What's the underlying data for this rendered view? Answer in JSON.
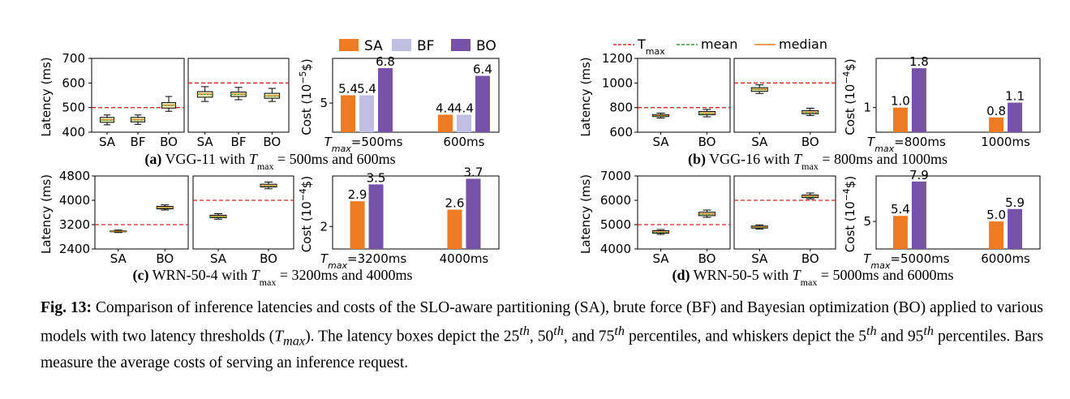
{
  "legends": {
    "method": [
      {
        "label": "SA",
        "color": "#EE7B22"
      },
      {
        "label": "BF",
        "color": "#C0BEE2"
      },
      {
        "label": "BO",
        "color": "#7851A9"
      }
    ],
    "lines": [
      {
        "label": "T",
        "sub": "max",
        "color": "#D62728",
        "style": "dashed"
      },
      {
        "label": "mean",
        "color": "#2CA02C",
        "style": "dashed"
      },
      {
        "label": "median",
        "color": "#EE7B22",
        "style": "solid"
      }
    ]
  },
  "panels": [
    {
      "id": "a",
      "caption": "(a) VGG-11 with T",
      "caption_tail": " = 500ms and 600ms"
    },
    {
      "id": "b",
      "caption": "(b) VGG-16 with T",
      "caption_tail": " = 800ms and 1000ms"
    },
    {
      "id": "c",
      "caption": "(c) WRN-50-4 with T",
      "caption_tail": " = 3200ms and 4000ms"
    },
    {
      "id": "d",
      "caption": "(d) WRN-50-5 with T",
      "caption_tail": " = 5000ms and 6000ms"
    }
  ],
  "chart_data": [
    {
      "panel": "a",
      "type": "box",
      "ylabel": "Latency (ms)",
      "ylim": [
        400,
        700
      ],
      "yticks": [
        400,
        500,
        600,
        700
      ],
      "subplots": [
        {
          "threshold": 500,
          "boxes": [
            {
              "label": "SA",
              "p5": 430,
              "p25": 440,
              "median": 450,
              "p75": 460,
              "p95": 470
            },
            {
              "label": "BF",
              "p5": 432,
              "p25": 442,
              "median": 451,
              "p75": 460,
              "p95": 470
            },
            {
              "label": "BO",
              "p5": 485,
              "p25": 498,
              "median": 510,
              "p75": 520,
              "p95": 545
            }
          ]
        },
        {
          "threshold": 600,
          "boxes": [
            {
              "label": "SA",
              "p5": 525,
              "p25": 542,
              "median": 555,
              "p75": 565,
              "p95": 585
            },
            {
              "label": "BF",
              "p5": 532,
              "p25": 545,
              "median": 555,
              "p75": 563,
              "p95": 582
            },
            {
              "label": "BO",
              "p5": 525,
              "p25": 538,
              "median": 548,
              "p75": 558,
              "p95": 578
            }
          ]
        }
      ]
    },
    {
      "panel": "a",
      "type": "bar",
      "ylabel": "Cost (10",
      "ylabel_exp": "−5",
      "ylabel_tail": "$)",
      "ylim": [
        3.5,
        7.3
      ],
      "yticks": [
        5
      ],
      "categories": [
        "T",
        "600ms"
      ],
      "category0_sub": "max",
      "category0_tail": "=500ms",
      "series": [
        {
          "name": "SA",
          "values": [
            5.4,
            4.4
          ]
        },
        {
          "name": "BF",
          "values": [
            5.4,
            4.4
          ]
        },
        {
          "name": "BO",
          "values": [
            6.8,
            6.4
          ]
        }
      ]
    },
    {
      "panel": "b",
      "type": "box",
      "ylabel": "Latency (ms)",
      "ylim": [
        600,
        1200
      ],
      "yticks": [
        600,
        800,
        1000,
        1200
      ],
      "subplots": [
        {
          "threshold": 800,
          "boxes": [
            {
              "label": "SA",
              "p5": 715,
              "p25": 727,
              "median": 735,
              "p75": 743,
              "p95": 755
            },
            {
              "label": "BO",
              "p5": 725,
              "p25": 742,
              "median": 755,
              "p75": 768,
              "p95": 785
            }
          ]
        },
        {
          "threshold": 1000,
          "boxes": [
            {
              "label": "SA",
              "p5": 915,
              "p25": 932,
              "median": 950,
              "p75": 962,
              "p95": 985
            },
            {
              "label": "BO",
              "p5": 735,
              "p25": 750,
              "median": 762,
              "p75": 775,
              "p95": 795
            }
          ]
        }
      ]
    },
    {
      "panel": "b",
      "type": "bar",
      "ylabel": "Cost (10",
      "ylabel_exp": "−4",
      "ylabel_tail": "$)",
      "ylim": [
        0.5,
        2.0
      ],
      "yticks": [
        1
      ],
      "categories": [
        "T",
        "1000ms"
      ],
      "category0_sub": "max",
      "category0_tail": "=800ms",
      "series": [
        {
          "name": "SA",
          "values": [
            1.0,
            0.8
          ]
        },
        {
          "name": "BO",
          "values": [
            1.8,
            1.1
          ]
        }
      ]
    },
    {
      "panel": "c",
      "type": "box",
      "ylabel": "Latency (ms)",
      "ylim": [
        2400,
        4800
      ],
      "yticks": [
        2400,
        3200,
        4000,
        4800
      ],
      "subplots": [
        {
          "threshold": 3200,
          "boxes": [
            {
              "label": "SA",
              "p5": 2940,
              "p25": 2965,
              "median": 2980,
              "p75": 2995,
              "p95": 3020
            },
            {
              "label": "BO",
              "p5": 3680,
              "p25": 3720,
              "median": 3760,
              "p75": 3800,
              "p95": 3850
            }
          ]
        },
        {
          "threshold": 4000,
          "boxes": [
            {
              "label": "SA",
              "p5": 3380,
              "p25": 3430,
              "median": 3470,
              "p75": 3510,
              "p95": 3560
            },
            {
              "label": "BO",
              "p5": 4380,
              "p25": 4440,
              "median": 4480,
              "p75": 4530,
              "p95": 4600
            }
          ]
        }
      ]
    },
    {
      "panel": "c",
      "type": "bar",
      "ylabel": "Cost (10",
      "ylabel_exp": "−4",
      "ylabel_tail": "$)",
      "ylim": [
        1.2,
        3.8
      ],
      "yticks": [
        2
      ],
      "categories": [
        "T",
        "4000ms"
      ],
      "category0_sub": "max",
      "category0_tail": "=3200ms",
      "series": [
        {
          "name": "SA",
          "values": [
            2.9,
            2.6
          ]
        },
        {
          "name": "BO",
          "values": [
            3.5,
            3.7
          ]
        }
      ]
    },
    {
      "panel": "d",
      "type": "box",
      "ylabel": "Latency (ms)",
      "ylim": [
        4000,
        7000
      ],
      "yticks": [
        4000,
        5000,
        6000,
        7000
      ],
      "subplots": [
        {
          "threshold": 5000,
          "boxes": [
            {
              "label": "SA",
              "p5": 4600,
              "p25": 4650,
              "median": 4700,
              "p75": 4750,
              "p95": 4800
            },
            {
              "label": "BO",
              "p5": 5300,
              "p25": 5370,
              "median": 5440,
              "p75": 5510,
              "p95": 5600
            }
          ]
        },
        {
          "threshold": 6000,
          "boxes": [
            {
              "label": "SA",
              "p5": 4820,
              "p25": 4860,
              "median": 4900,
              "p75": 4940,
              "p95": 4990
            },
            {
              "label": "BO",
              "p5": 6060,
              "p25": 6110,
              "median": 6160,
              "p75": 6220,
              "p95": 6300
            }
          ]
        }
      ]
    },
    {
      "panel": "d",
      "type": "bar",
      "ylabel": "Cost (10",
      "ylabel_exp": "−4",
      "ylabel_tail": "$)",
      "ylim": [
        3.0,
        8.3
      ],
      "yticks": [
        5
      ],
      "categories": [
        "T",
        "6000ms"
      ],
      "category0_sub": "max",
      "category0_tail": "=5000ms",
      "series": [
        {
          "name": "SA",
          "values": [
            5.4,
            5.0
          ]
        },
        {
          "name": "BO",
          "values": [
            7.9,
            5.9
          ]
        }
      ]
    }
  ],
  "figure_caption": {
    "label": "Fig. 13:",
    "parts": [
      "Comparison of inference latencies and costs of the SLO-aware partitioning (SA), brute force (BF) and Bayesian optimization (BO) applied to various models with two latency thresholds (",
      "). The latency boxes depict the 25",
      ", 50",
      ", and 75",
      " percentiles, and whiskers depict the 5",
      " and 95",
      " percentiles. Bars measure the average costs of serving an inference request."
    ],
    "tmax_main": "T",
    "tmax_sub": "max",
    "sup": "th"
  }
}
